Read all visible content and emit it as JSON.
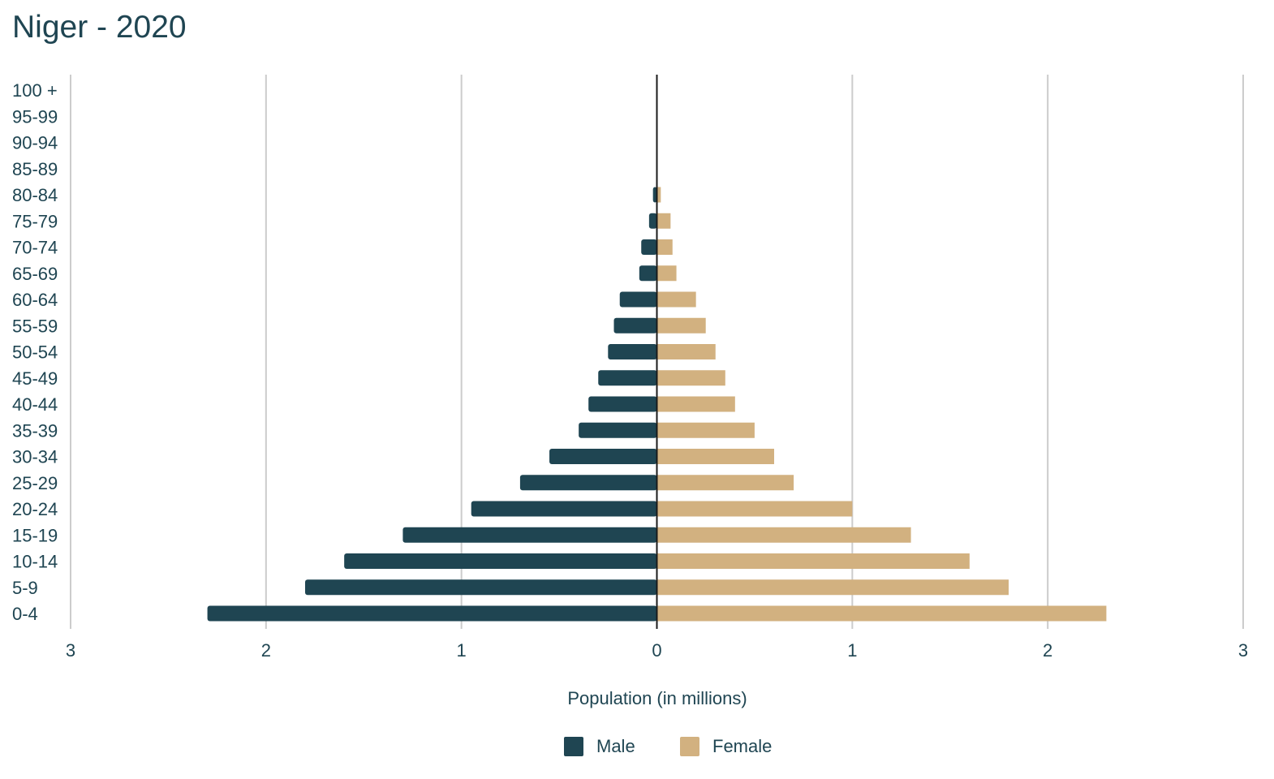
{
  "chart_data": {
    "type": "bar",
    "orientation": "horizontal",
    "subtype": "population-pyramid",
    "title": "Niger - 2020",
    "xlabel": "Population (in millions)",
    "ylabel": "",
    "xlim": [
      -3,
      3
    ],
    "x_ticks": [
      -3,
      -2,
      -1,
      0,
      1,
      2,
      3
    ],
    "x_tick_labels": [
      "3",
      "2",
      "1",
      "0",
      "1",
      "2",
      "3"
    ],
    "grid": true,
    "legend_position": "bottom",
    "categories": [
      "100 +",
      "95-99",
      "90-94",
      "85-89",
      "80-84",
      "75-79",
      "70-74",
      "65-69",
      "60-64",
      "55-59",
      "50-54",
      "45-49",
      "40-44",
      "35-39",
      "30-34",
      "25-29",
      "20-24",
      "15-19",
      "10-14",
      "5-9",
      "0-4"
    ],
    "series": [
      {
        "name": "Male",
        "color": "#1f4552",
        "side": "left",
        "values": [
          0,
          0,
          0,
          0,
          0.02,
          0.04,
          0.08,
          0.09,
          0.19,
          0.22,
          0.25,
          0.3,
          0.35,
          0.4,
          0.55,
          0.7,
          0.95,
          1.3,
          1.6,
          1.8,
          2.3
        ]
      },
      {
        "name": "Female",
        "color": "#d2b180",
        "side": "right",
        "values": [
          0,
          0,
          0,
          0,
          0.02,
          0.07,
          0.08,
          0.1,
          0.2,
          0.25,
          0.3,
          0.35,
          0.4,
          0.5,
          0.6,
          0.7,
          1.0,
          1.3,
          1.6,
          1.8,
          2.3
        ]
      }
    ]
  }
}
